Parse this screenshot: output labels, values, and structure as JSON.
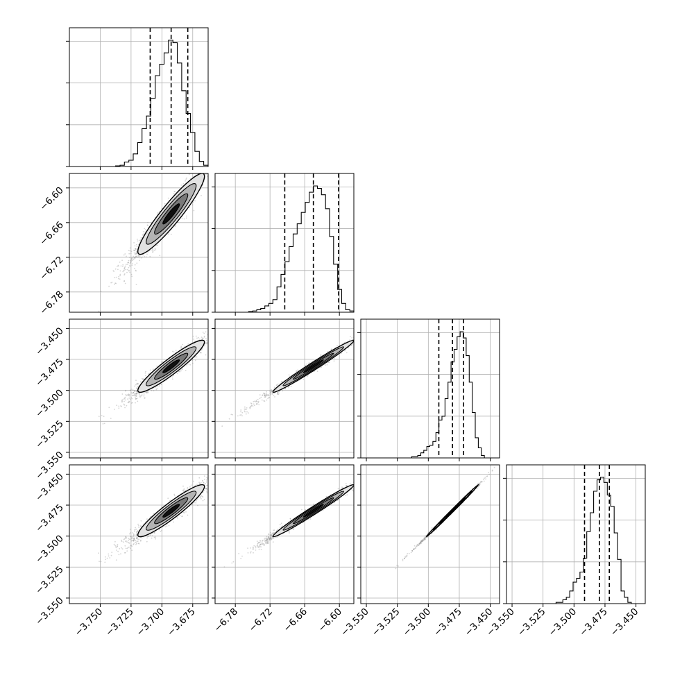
{
  "chart_data": {
    "type": "corner",
    "grid": true,
    "legend": "none",
    "colors": {
      "line": "#000000",
      "points": "#888888",
      "grid": "#b0b0b0",
      "fill_light": "#e2e2e2",
      "fill_mid": "#b4b4b4",
      "fill_dark": "#7a7a7a",
      "core": "#111111"
    },
    "parameters": [
      {
        "center": -3.6925,
        "sd": 0.0135,
        "range": [
          -3.775,
          -3.6625
        ],
        "q": [
          -3.7095,
          -3.6925,
          -3.679
        ]
      },
      {
        "center": -6.645,
        "sd": 0.035,
        "range": [
          -6.815,
          -6.575
        ],
        "q": [
          -6.6945,
          -6.645,
          -6.6015
        ]
      },
      {
        "center": -3.4805,
        "sd": 0.0105,
        "range": [
          -3.5545,
          -3.4425
        ],
        "q": [
          -3.4915,
          -3.4805,
          -3.4715
        ]
      },
      {
        "center": -3.4795,
        "sd": 0.0105,
        "range": [
          -3.5545,
          -3.4425
        ],
        "q": [
          -3.4915,
          -3.4795,
          -3.4715
        ]
      }
    ],
    "correlations": {
      "0-1": 0.93,
      "0-2": 0.93,
      "0-3": 0.93,
      "1-2": 0.985,
      "1-3": 0.985,
      "2-3": 0.998
    },
    "hist_rel": [
      [
        0.0,
        0.005,
        0.01,
        0.035,
        0.05,
        0.1,
        0.19,
        0.3,
        0.4,
        0.54,
        0.72,
        0.81,
        0.9,
        1.0,
        0.98,
        0.82,
        0.6,
        0.42,
        0.27,
        0.12,
        0.04,
        0.01
      ],
      [
        0.0,
        0.0,
        0.005,
        0.01,
        0.02,
        0.03,
        0.05,
        0.07,
        0.1,
        0.2,
        0.3,
        0.4,
        0.52,
        0.62,
        0.7,
        0.79,
        0.87,
        0.95,
        1.0,
        0.98,
        0.93,
        0.82,
        0.6,
        0.38,
        0.18,
        0.07,
        0.02,
        0.01
      ],
      [
        0.0,
        0.0,
        0.01,
        0.01,
        0.02,
        0.04,
        0.06,
        0.09,
        0.1,
        0.13,
        0.2,
        0.3,
        0.33,
        0.47,
        0.6,
        0.76,
        0.86,
        0.96,
        1.0,
        0.95,
        0.81,
        0.6,
        0.36,
        0.16,
        0.08,
        0.02
      ],
      [
        0.0,
        0.01,
        0.01,
        0.03,
        0.05,
        0.1,
        0.17,
        0.2,
        0.25,
        0.36,
        0.57,
        0.72,
        0.89,
        0.98,
        1.0,
        0.96,
        0.86,
        0.77,
        0.56,
        0.35,
        0.1,
        0.05,
        0.01
      ]
    ],
    "hist_yticks": [
      0.32,
      0.64,
      0.96
    ],
    "ticks": [
      [
        "-3.750",
        "-3.725",
        "-3.700",
        "-3.675"
      ],
      [
        "-6.78",
        "-6.72",
        "-6.66",
        "-6.60"
      ],
      [
        "-3.550",
        "-3.525",
        "-3.500",
        "-3.475",
        "-3.450"
      ],
      [
        "-3.550",
        "-3.525",
        "-3.500",
        "-3.475",
        "-3.450"
      ]
    ],
    "y_ticks_shown": [
      [],
      [
        "-6.78",
        "-6.72",
        "-6.66",
        "-6.60"
      ],
      [
        "-3.550",
        "-3.525",
        "-3.500",
        "-3.475",
        "-3.450"
      ],
      [
        "-3.550",
        "-3.525",
        "-3.500",
        "-3.475",
        "-3.450"
      ]
    ]
  }
}
